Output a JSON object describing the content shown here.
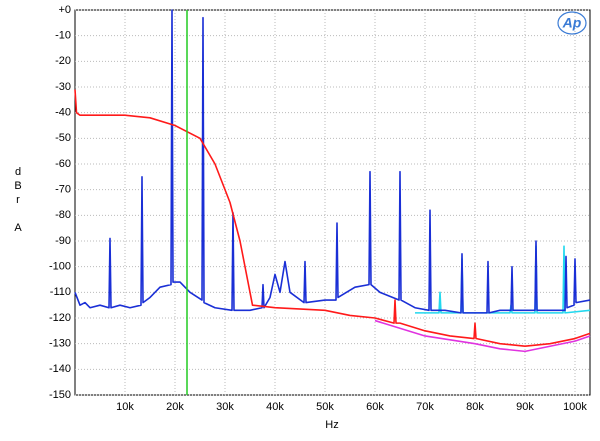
{
  "chart_data": {
    "type": "line",
    "x_label": "Hz",
    "y_label": "dBr A",
    "logo": "Ap",
    "xlim": [
      0,
      103000
    ],
    "ylim": [
      -150,
      0
    ],
    "xticks": [
      {
        "value": 10000,
        "label": "10k"
      },
      {
        "value": 20000,
        "label": "20k"
      },
      {
        "value": 30000,
        "label": "30k"
      },
      {
        "value": 40000,
        "label": "40k"
      },
      {
        "value": 50000,
        "label": "50k"
      },
      {
        "value": 60000,
        "label": "60k"
      },
      {
        "value": 70000,
        "label": "70k"
      },
      {
        "value": 80000,
        "label": "80k"
      },
      {
        "value": 90000,
        "label": "90k"
      },
      {
        "value": 100000,
        "label": "100k"
      }
    ],
    "yticks": [
      {
        "value": 0,
        "label": "+0"
      },
      -10,
      -20,
      -30,
      -40,
      -50,
      -60,
      -70,
      -80,
      -90,
      -100,
      -110,
      -120,
      -130,
      -140,
      -150
    ],
    "grid": true,
    "cursor": {
      "x": 22400,
      "color": "#22cc22"
    },
    "series": [
      {
        "color": "#22d8ee",
        "x": [
          68000,
          72800,
          73000,
          73200,
          77200,
          77400,
          77600,
          87000,
          87200,
          87400,
          92000,
          92200,
          92400,
          97600,
          97800,
          98000,
          103000
        ],
        "values": [
          -118,
          -118,
          -110,
          -118,
          -118,
          -97,
          -118,
          -118,
          -115,
          -118,
          -118,
          -92,
          -118,
          -118,
          -92,
          -118,
          -117
        ]
      },
      {
        "color": "#1a2fd6",
        "x": [
          0,
          1000,
          2000,
          3000,
          5000,
          6800,
          7000,
          7200,
          9000,
          11000,
          13200,
          13400,
          13600,
          15000,
          17000,
          19200,
          19400,
          19600,
          21000,
          23000,
          25400,
          25600,
          25800,
          28000,
          31400,
          31600,
          31800,
          35000,
          37400,
          37600,
          37800,
          39000,
          40000,
          41000,
          42000,
          43000,
          45800,
          46000,
          46200,
          50000,
          52200,
          52400,
          52600,
          56000,
          58800,
          59000,
          59200,
          61000,
          64800,
          65000,
          65200,
          68000,
          70800,
          71000,
          71200,
          74000,
          77200,
          77400,
          77600,
          80000,
          82400,
          82600,
          82800,
          85000,
          87200,
          87400,
          87600,
          90000,
          92000,
          92200,
          92400,
          95000,
          98000,
          98200,
          98400,
          99800,
          100000,
          100200,
          103000
        ],
        "values": [
          -110,
          -115,
          -114,
          -116,
          -115,
          -116,
          -89,
          -116,
          -115,
          -116,
          -115,
          -65,
          -114,
          -112,
          -108,
          -107,
          0,
          -106,
          -106,
          -110,
          -113,
          -3,
          -114,
          -116,
          -117,
          -79,
          -117,
          -117,
          -116,
          -107,
          -116,
          -112,
          -103,
          -110,
          -98,
          -110,
          -114,
          -98,
          -114,
          -113,
          -113,
          -83,
          -112,
          -108,
          -107,
          -63,
          -107,
          -110,
          -113,
          -63,
          -113,
          -116,
          -117,
          -78,
          -117,
          -117,
          -118,
          -95,
          -118,
          -118,
          -118,
          -98,
          -118,
          -117,
          -117,
          -100,
          -117,
          -117,
          -117,
          -90,
          -117,
          -117,
          -117,
          -96,
          -116,
          -115,
          -97,
          -114,
          -113
        ]
      },
      {
        "color": "#e033e0",
        "x": [
          60000,
          70000,
          80000,
          85000,
          90000,
          95000,
          100000,
          103000
        ],
        "values": [
          -121,
          -127,
          -130,
          -132,
          -133,
          -131,
          -129,
          -127
        ]
      },
      {
        "color": "#ff1a1a",
        "x": [
          0,
          300,
          1000,
          5000,
          10000,
          15000,
          20000,
          25000,
          28000,
          31000,
          33000,
          34500,
          35500,
          40000,
          50000,
          55000,
          60000,
          63800,
          64000,
          64200,
          65000,
          70000,
          75000,
          79800,
          80000,
          80200,
          85000,
          90000,
          95000,
          100000,
          103000
        ],
        "values": [
          -31,
          -40,
          -41,
          -41,
          -41,
          -42,
          -45,
          -50,
          -60,
          -75,
          -90,
          -105,
          -115,
          -116,
          -117,
          -119,
          -120,
          -122,
          -113,
          -122,
          -122,
          -125,
          -127,
          -128,
          -122,
          -128,
          -130,
          -131,
          -130,
          -128,
          -126
        ]
      }
    ]
  }
}
